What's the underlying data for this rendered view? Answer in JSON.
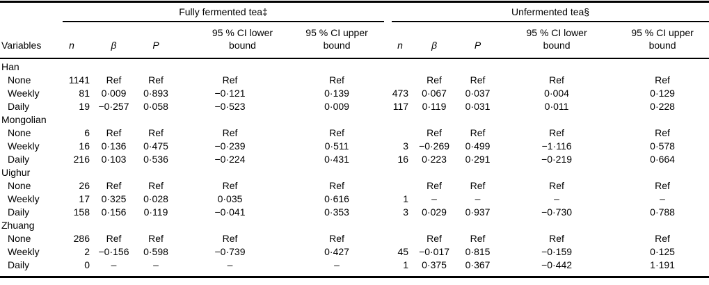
{
  "table": {
    "groups": [
      "Fully fermented tea‡",
      "Unfermented tea§"
    ],
    "col_headers": {
      "variables": "Variables",
      "n": "n",
      "beta": "β",
      "p": "P",
      "ci_lower": "95 % CI lower bound",
      "ci_upper": "95 % CI upper bound"
    },
    "sections": [
      {
        "label": "Han",
        "rows": [
          {
            "variable": "None",
            "ff": [
              "1141",
              "Ref",
              "Ref",
              "Ref",
              "Ref"
            ],
            "uf": [
              "",
              "Ref",
              "Ref",
              "Ref",
              "Ref"
            ]
          },
          {
            "variable": "Weekly",
            "ff": [
              "81",
              "0·009",
              "0·893",
              "−0·121",
              "0·139"
            ],
            "uf": [
              "473",
              "0·067",
              "0·037",
              "0·004",
              "0·129"
            ]
          },
          {
            "variable": "Daily",
            "ff": [
              "19",
              "−0·257",
              "0·058",
              "−0·523",
              "0·009"
            ],
            "uf": [
              "117",
              "0·119",
              "0·031",
              "0·011",
              "0·228"
            ]
          }
        ]
      },
      {
        "label": "Mongolian",
        "rows": [
          {
            "variable": "None",
            "ff": [
              "6",
              "Ref",
              "Ref",
              "Ref",
              "Ref"
            ],
            "uf": [
              "",
              "Ref",
              "Ref",
              "Ref",
              "Ref"
            ]
          },
          {
            "variable": "Weekly",
            "ff": [
              "16",
              "0·136",
              "0·475",
              "−0·239",
              "0·511"
            ],
            "uf": [
              "3",
              "−0·269",
              "0·499",
              "−1·116",
              "0·578"
            ]
          },
          {
            "variable": "Daily",
            "ff": [
              "216",
              "0·103",
              "0·536",
              "−0·224",
              "0·431"
            ],
            "uf": [
              "16",
              "0·223",
              "0·291",
              "−0·219",
              "0·664"
            ]
          }
        ]
      },
      {
        "label": "Uighur",
        "rows": [
          {
            "variable": "None",
            "ff": [
              "26",
              "Ref",
              "Ref",
              "Ref",
              "Ref"
            ],
            "uf": [
              "",
              "Ref",
              "Ref",
              "Ref",
              "Ref"
            ]
          },
          {
            "variable": "Weekly",
            "ff": [
              "17",
              "0·325",
              "0·028",
              "0·035",
              "0·616"
            ],
            "uf": [
              "1",
              "–",
              "–",
              "–",
              "–"
            ]
          },
          {
            "variable": "Daily",
            "ff": [
              "158",
              "0·156",
              "0·119",
              "−0·041",
              "0·353"
            ],
            "uf": [
              "3",
              "0·029",
              "0·937",
              "−0·730",
              "0·788"
            ]
          }
        ]
      },
      {
        "label": "Zhuang",
        "rows": [
          {
            "variable": "None",
            "ff": [
              "286",
              "Ref",
              "Ref",
              "Ref",
              "Ref"
            ],
            "uf": [
              "",
              "Ref",
              "Ref",
              "Ref",
              "Ref"
            ]
          },
          {
            "variable": "Weekly",
            "ff": [
              "2",
              "−0·156",
              "0·598",
              "−0·739",
              "0·427"
            ],
            "uf": [
              "45",
              "−0·017",
              "0·815",
              "−0·159",
              "0·125"
            ]
          },
          {
            "variable": "Daily",
            "ff": [
              "0",
              "–",
              "–",
              "–",
              "–"
            ],
            "uf": [
              "1",
              "0·375",
              "0·367",
              "−0·442",
              "1·191"
            ]
          }
        ]
      }
    ]
  }
}
